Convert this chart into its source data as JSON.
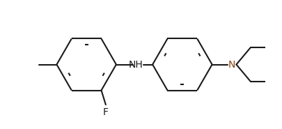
{
  "bg_color": "#ffffff",
  "bond_color": "#1a1a1a",
  "N_color": "#8B4513",
  "F_color": "#1a1a1a",
  "line_width": 1.5,
  "dbo": 0.055,
  "ring_r": 0.27,
  "figsize": [
    4.05,
    1.85
  ],
  "dpi": 100,
  "xlim": [
    -1.05,
    1.2
  ],
  "ylim": [
    -0.58,
    0.58
  ]
}
